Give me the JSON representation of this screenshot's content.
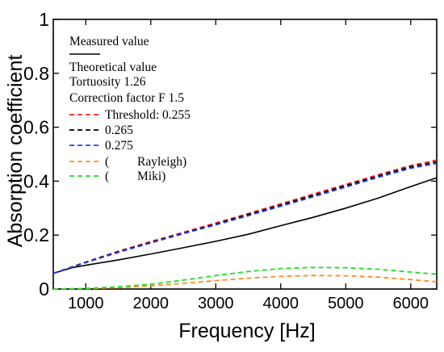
{
  "chart_data": {
    "type": "line",
    "xlabel": "Frequency [Hz]",
    "ylabel": "Absorption coefficient",
    "xlim": [
      500,
      6400
    ],
    "ylim": [
      0,
      1
    ],
    "x_ticks": [
      1000,
      2000,
      3000,
      4000,
      5000,
      6000
    ],
    "x_tick_labels": [
      "1000",
      "2000",
      "3000",
      "4000",
      "5000",
      "6000"
    ],
    "y_ticks": [
      0,
      0.2,
      0.4,
      0.6,
      0.8,
      1
    ],
    "y_tick_labels": [
      "0",
      "0.2",
      "0.4",
      "0.6",
      "0.8",
      "1"
    ],
    "grid": false,
    "legend_position": "top-left",
    "legend_lines": [
      "Measured value",
      "Theoretical value",
      "Tortuosity 1.26",
      "Correction factor  F 1.5"
    ],
    "series": [
      {
        "name": "Measured value",
        "color": "#000000",
        "style": "solid",
        "x": [
          500,
          800,
          1000,
          1500,
          2000,
          2500,
          3000,
          3500,
          4000,
          4500,
          5000,
          5500,
          6000,
          6400
        ],
        "values": [
          0.058,
          0.08,
          0.088,
          0.108,
          0.13,
          0.153,
          0.177,
          0.203,
          0.235,
          0.266,
          0.3,
          0.337,
          0.38,
          0.413
        ]
      },
      {
        "name": "Threshold: 0.255",
        "color": "#ff2020",
        "style": "dashed",
        "x": [
          500,
          1000,
          1500,
          2000,
          2500,
          3000,
          3500,
          4000,
          4500,
          5000,
          5500,
          6000,
          6400
        ],
        "values": [
          0.058,
          0.1,
          0.14,
          0.176,
          0.21,
          0.245,
          0.28,
          0.316,
          0.352,
          0.388,
          0.424,
          0.458,
          0.478
        ]
      },
      {
        "name": "0.265",
        "color": "#000000",
        "style": "dashed",
        "x": [
          500,
          1000,
          1500,
          2000,
          2500,
          3000,
          3500,
          4000,
          4500,
          5000,
          5500,
          6000,
          6400
        ],
        "values": [
          0.058,
          0.099,
          0.138,
          0.173,
          0.207,
          0.241,
          0.276,
          0.311,
          0.347,
          0.383,
          0.419,
          0.453,
          0.472
        ]
      },
      {
        "name": "0.275",
        "color": "#1f3fff",
        "style": "dashed",
        "x": [
          500,
          1000,
          1500,
          2000,
          2500,
          3000,
          3500,
          4000,
          4500,
          5000,
          5500,
          6000,
          6400
        ],
        "values": [
          0.058,
          0.098,
          0.136,
          0.171,
          0.205,
          0.238,
          0.272,
          0.307,
          0.342,
          0.378,
          0.414,
          0.448,
          0.466
        ]
      },
      {
        "name": "(         Rayleigh)",
        "color": "#ff8a1f",
        "style": "dashed",
        "x": [
          500,
          1000,
          1500,
          2000,
          2500,
          3000,
          3500,
          4000,
          4500,
          5000,
          5500,
          6000,
          6400
        ],
        "values": [
          0.0,
          0.001,
          0.005,
          0.012,
          0.021,
          0.031,
          0.04,
          0.047,
          0.05,
          0.049,
          0.044,
          0.035,
          0.027
        ]
      },
      {
        "name": "(         Miki)",
        "color": "#22dd22",
        "style": "dashed",
        "x": [
          500,
          1000,
          1500,
          2000,
          2500,
          3000,
          3500,
          4000,
          4500,
          5000,
          5500,
          6000,
          6400
        ],
        "values": [
          0.0,
          0.002,
          0.008,
          0.018,
          0.033,
          0.05,
          0.065,
          0.076,
          0.08,
          0.079,
          0.073,
          0.063,
          0.055
        ]
      }
    ]
  }
}
